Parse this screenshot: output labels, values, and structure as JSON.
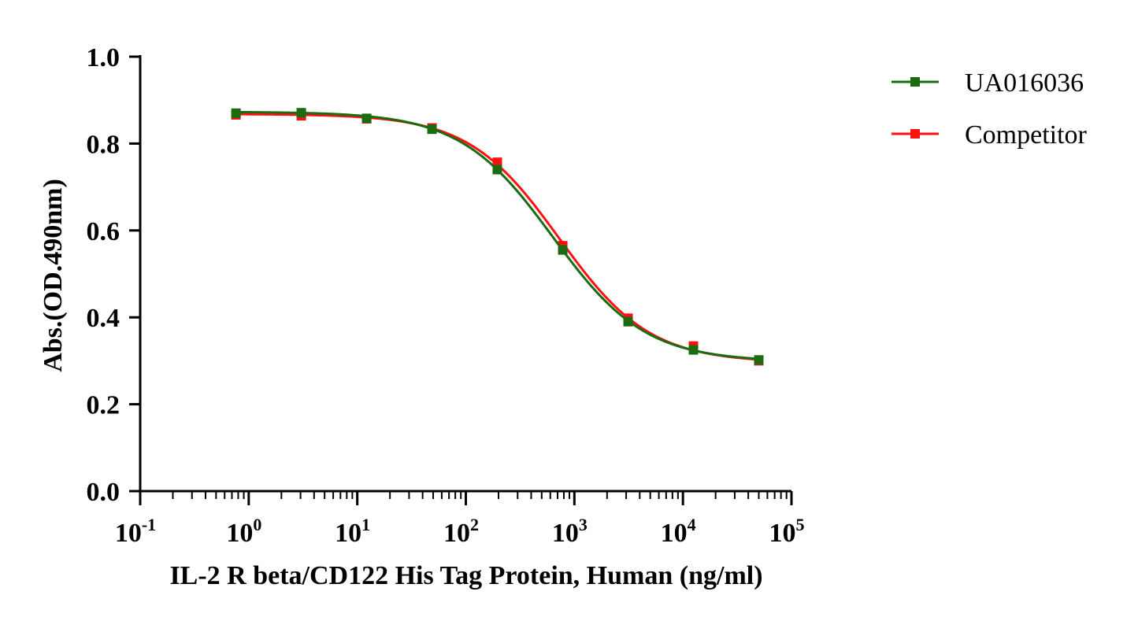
{
  "chart_data": {
    "type": "line",
    "title": "",
    "xlabel": "IL-2 R beta/CD122 His Tag Protein, Human (ng/ml)",
    "ylabel": "Abs.(OD.490nm)",
    "x_scale": "log10",
    "xlim": [
      0.1,
      100000
    ],
    "ylim": [
      0.0,
      1.0
    ],
    "yticks": [
      "0.0",
      "0.2",
      "0.4",
      "0.6",
      "0.8",
      "1.0"
    ],
    "xticks": [
      {
        "base": "10",
        "exp": "-1"
      },
      {
        "base": "10",
        "exp": "0"
      },
      {
        "base": "10",
        "exp": "1"
      },
      {
        "base": "10",
        "exp": "2"
      },
      {
        "base": "10",
        "exp": "3"
      },
      {
        "base": "10",
        "exp": "4"
      },
      {
        "base": "10",
        "exp": "5"
      }
    ],
    "grid": false,
    "legend_position": "top-right",
    "series": [
      {
        "name": "UA016036",
        "color": "#1a6b12",
        "marker": "square",
        "x": [
          0.763,
          3.05,
          12.2,
          48.8,
          195,
          781,
          3125,
          12500,
          50000
        ],
        "y": [
          0.87,
          0.871,
          0.858,
          0.833,
          0.74,
          0.555,
          0.39,
          0.325,
          0.302
        ]
      },
      {
        "name": "Competitor",
        "color": "#ff1010",
        "marker": "square",
        "x": [
          0.763,
          3.05,
          12.2,
          48.8,
          195,
          781,
          3125,
          12500,
          50000
        ],
        "y": [
          0.866,
          0.864,
          0.857,
          0.836,
          0.757,
          0.565,
          0.398,
          0.334,
          0.3
        ]
      }
    ]
  }
}
